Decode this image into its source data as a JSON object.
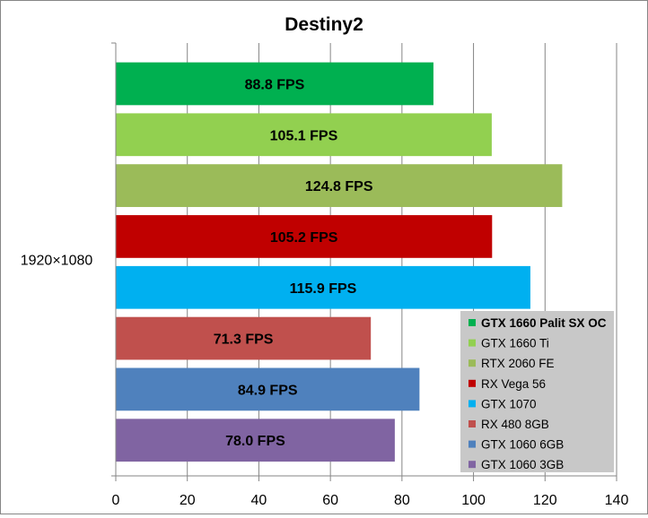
{
  "chart_data": {
    "type": "bar",
    "orientation": "horizontal",
    "title": "Destiny2",
    "category": "1920×1080",
    "xlim": [
      0,
      140
    ],
    "x_ticks": [
      0,
      20,
      40,
      60,
      80,
      100,
      120,
      140
    ],
    "grid": true,
    "legend_position": "bottom-right",
    "series": [
      {
        "name": "GTX 1660 Palit SX OC",
        "value": 88.8,
        "label": "88.8 FPS",
        "color": "#00B050",
        "bold": true
      },
      {
        "name": "GTX 1660 Ti",
        "value": 105.1,
        "label": "105.1 FPS",
        "color": "#92D050"
      },
      {
        "name": "RTX 2060 FE",
        "value": 124.8,
        "label": "124.8 FPS",
        "color": "#9BBB59"
      },
      {
        "name": "RX Vega 56",
        "value": 105.2,
        "label": "105.2 FPS",
        "color": "#C00000"
      },
      {
        "name": "GTX 1070",
        "value": 115.9,
        "label": "115.9 FPS",
        "color": "#00B0F0"
      },
      {
        "name": "RX 480 8GB",
        "value": 71.3,
        "label": "71.3 FPS",
        "color": "#C0504D"
      },
      {
        "name": "GTX 1060 6GB",
        "value": 84.9,
        "label": "84.9 FPS",
        "color": "#4F81BD"
      },
      {
        "name": "GTX 1060 3GB",
        "value": 78.0,
        "label": "78.0 FPS",
        "color": "#8064A2"
      }
    ]
  }
}
